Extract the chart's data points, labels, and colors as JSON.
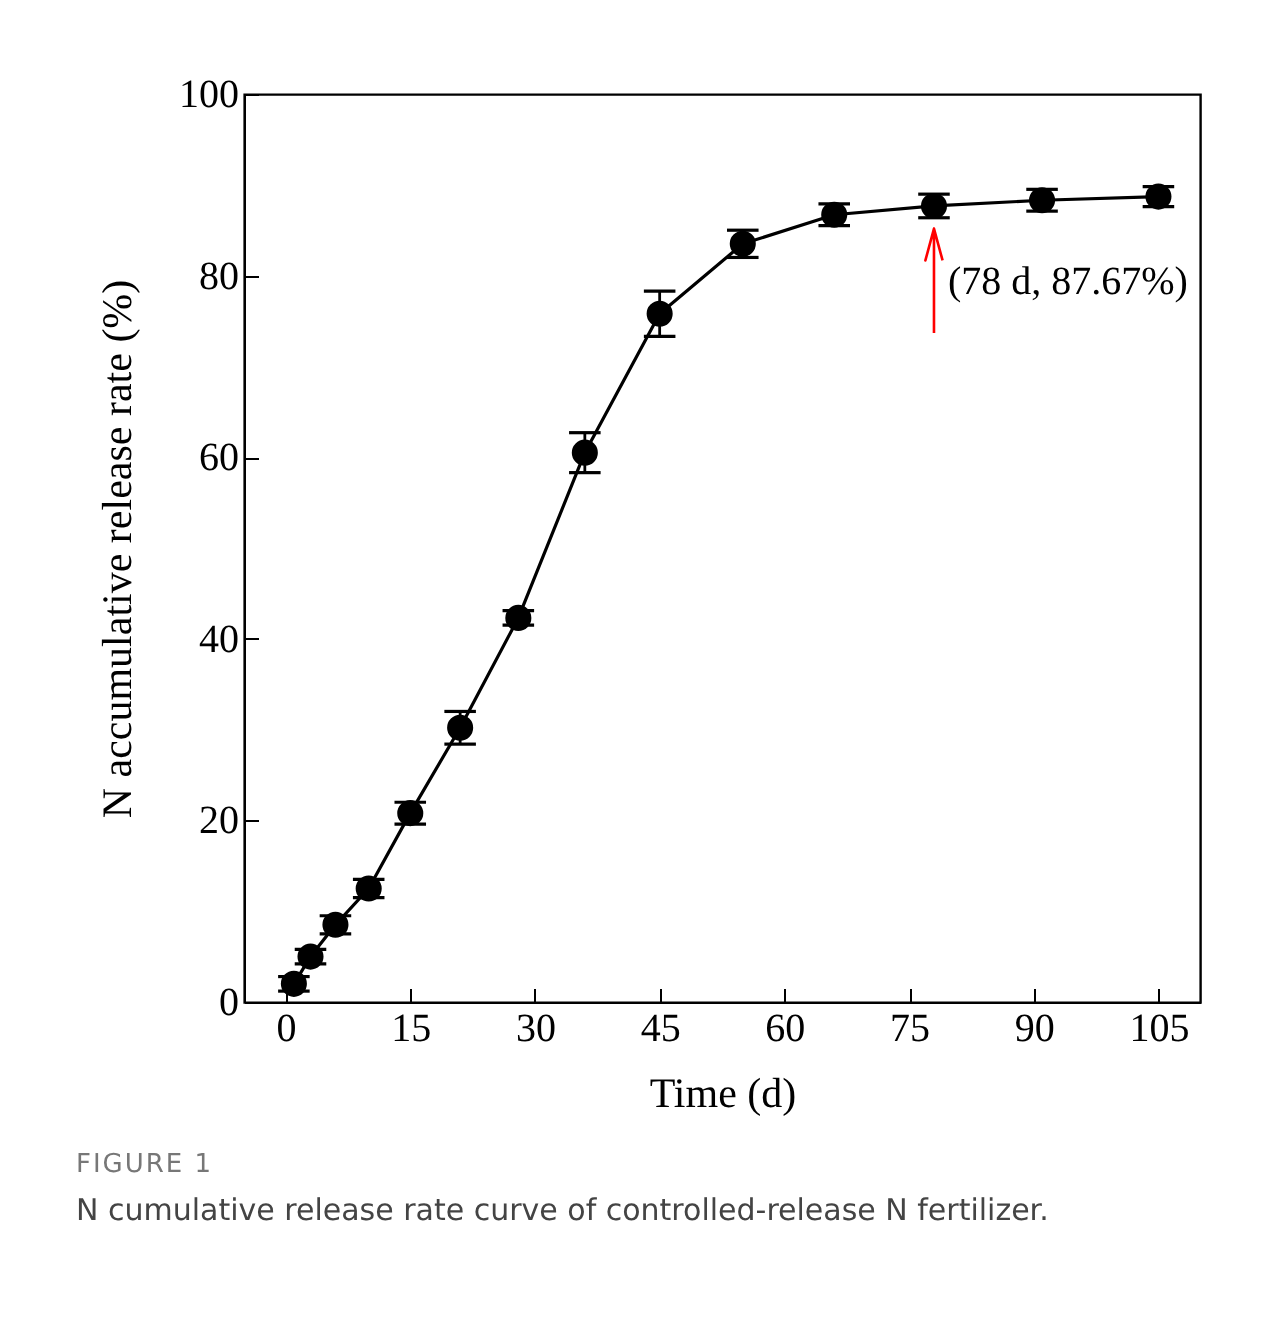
{
  "chart_data": {
    "type": "line",
    "xlabel": "Time (d)",
    "ylabel": "N accumulative release rate (%)",
    "x": [
      1,
      3,
      6,
      10,
      15,
      21,
      28,
      36,
      45,
      55,
      66,
      78,
      91,
      105
    ],
    "series": [
      {
        "color": "#000000",
        "values": [
          2,
          5,
          8.5,
          12.5,
          20.8,
          30.2,
          42.3,
          60.5,
          75.8,
          83.5,
          86.7,
          87.67,
          88.3,
          88.7
        ],
        "errors": [
          0.8,
          0.8,
          1,
          1,
          1.2,
          1.8,
          0.8,
          2.2,
          2.5,
          1.5,
          1.2,
          1.3,
          1.2,
          1.1
        ]
      }
    ],
    "xlim": [
      -5,
      110
    ],
    "xticks": [
      0,
      15,
      30,
      45,
      60,
      75,
      90,
      105
    ],
    "ylim": [
      0,
      100
    ],
    "yticks": [
      0,
      20,
      40,
      60,
      80,
      100
    ],
    "marker": "circle",
    "line_style": "solid",
    "grid": false,
    "annotations": [
      {
        "text": "(78 d, 87.67%)",
        "x": 78,
        "y": 87.67
      },
      "FIGURE 1",
      "N cumulative release rate curve of controlled-release N fertilizer."
    ]
  }
}
